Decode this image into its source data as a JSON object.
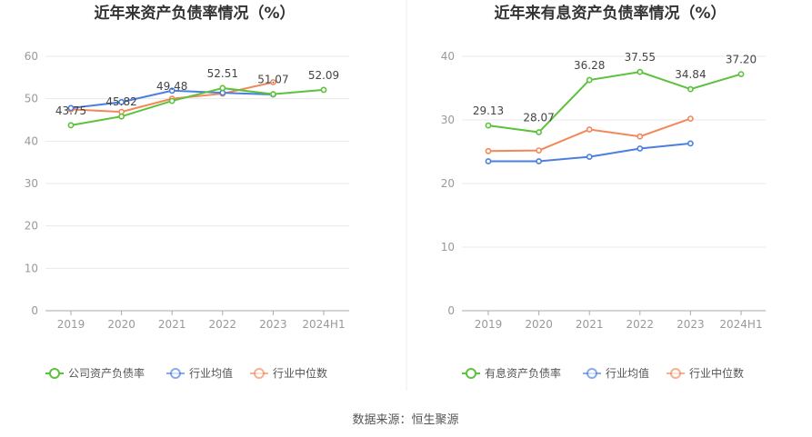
{
  "source": "数据来源：恒生聚源",
  "colors": {
    "green": "#5cc23b",
    "blue": "#4a7fde",
    "orange": "#f2875a",
    "grid": "#e8e8e8",
    "axis": "#aaaaaa"
  },
  "chart_data": [
    {
      "type": "line",
      "title": "近年来资产负债率情况（%）",
      "categories": [
        "2019",
        "2020",
        "2021",
        "2022",
        "2023",
        "2024H1"
      ],
      "ylim": [
        0,
        60
      ],
      "yticks": [
        0,
        10,
        20,
        30,
        40,
        50,
        60
      ],
      "grid": true,
      "legend_position": "bottom",
      "series": [
        {
          "name": "公司资产负债率",
          "color": "green",
          "values": [
            43.75,
            45.82,
            49.48,
            52.51,
            51.07,
            52.09
          ],
          "labels": [
            "43.75",
            "45.82",
            "49.48",
            "52.51",
            "51.07",
            "52.09"
          ]
        },
        {
          "name": "行业均值",
          "color": "blue",
          "values": [
            47.8,
            49.2,
            51.9,
            51.4,
            51.0,
            null
          ]
        },
        {
          "name": "行业中位数",
          "color": "orange",
          "values": [
            47.5,
            46.9,
            50.0,
            51.2,
            53.9,
            null
          ]
        }
      ]
    },
    {
      "type": "line",
      "title": "近年来有息资产负债率情况（%）",
      "categories": [
        "2019",
        "2020",
        "2021",
        "2022",
        "2023",
        "2024H1"
      ],
      "ylim": [
        0,
        40
      ],
      "yticks": [
        0,
        10,
        20,
        30,
        40
      ],
      "grid": true,
      "legend_position": "bottom",
      "series": [
        {
          "name": "有息资产负债率",
          "color": "green",
          "values": [
            29.13,
            28.07,
            36.28,
            37.55,
            34.84,
            37.2
          ],
          "labels": [
            "29.13",
            "28.07",
            "36.28",
            "37.55",
            "34.84",
            "37.20"
          ]
        },
        {
          "name": "行业均值",
          "color": "blue",
          "values": [
            23.5,
            23.5,
            24.2,
            25.5,
            26.3,
            null
          ]
        },
        {
          "name": "行业中位数",
          "color": "orange",
          "values": [
            25.1,
            25.2,
            28.5,
            27.4,
            30.2,
            null
          ]
        }
      ]
    }
  ]
}
